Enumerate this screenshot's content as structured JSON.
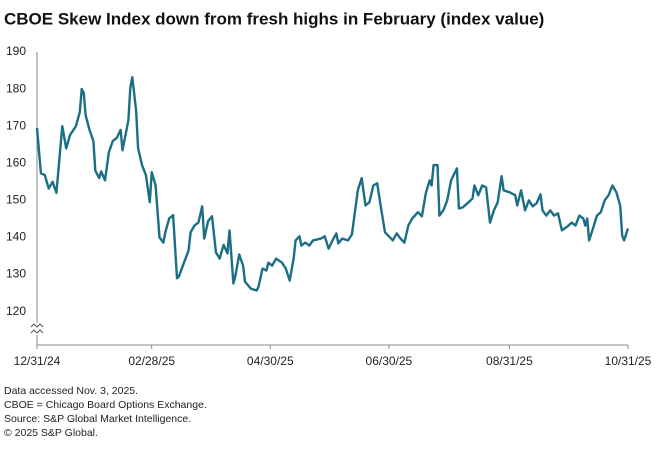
{
  "chart_data": {
    "type": "line",
    "title": "CBOE Skew Index down from fresh highs in February (index value)",
    "notes": [
      "Data accessed Nov. 3, 2025.",
      "CBOE = Chicago Board Options Exchange.",
      "Source: S&P Global Market Intelligence.",
      "© 2025 S&P Global."
    ],
    "xlim": [
      "2024-12-31",
      "2025-10-31"
    ],
    "xticks": [
      {
        "value": "2024-12-31",
        "label": "12/31/24"
      },
      {
        "value": "2025-02-28",
        "label": "02/28/25"
      },
      {
        "value": "2025-04-30",
        "label": "04/30/25"
      },
      {
        "value": "2025-06-30",
        "label": "06/30/25"
      },
      {
        "value": "2025-08-31",
        "label": "08/31/25"
      },
      {
        "value": "2025-10-31",
        "label": "10/31/25"
      }
    ],
    "ylim": [
      111,
      190
    ],
    "yticks": [
      120,
      130,
      140,
      150,
      160,
      170,
      180,
      190
    ],
    "grid": false,
    "x": [
      "2024-12-31",
      "2025-01-02",
      "2025-01-04",
      "2025-01-06",
      "2025-01-08",
      "2025-01-10",
      "2025-01-13",
      "2025-01-15",
      "2025-01-17",
      "2025-01-20",
      "2025-01-22",
      "2025-01-23",
      "2025-01-24",
      "2025-01-25",
      "2025-01-27",
      "2025-01-29",
      "2025-01-30",
      "2025-02-01",
      "2025-02-02",
      "2025-02-04",
      "2025-02-06",
      "2025-02-08",
      "2025-02-10",
      "2025-02-12",
      "2025-02-13",
      "2025-02-16",
      "2025-02-17",
      "2025-02-18",
      "2025-02-20",
      "2025-02-21",
      "2025-02-23",
      "2025-02-25",
      "2025-02-27",
      "2025-02-28",
      "2025-03-02",
      "2025-03-04",
      "2025-03-06",
      "2025-03-07",
      "2025-03-09",
      "2025-03-11",
      "2025-03-13",
      "2025-03-14",
      "2025-03-17",
      "2025-03-19",
      "2025-03-20",
      "2025-03-22",
      "2025-03-24",
      "2025-03-26",
      "2025-03-27",
      "2025-03-29",
      "2025-03-31",
      "2025-04-02",
      "2025-04-04",
      "2025-04-06",
      "2025-04-08",
      "2025-04-09",
      "2025-04-11",
      "2025-04-12",
      "2025-04-14",
      "2025-04-16",
      "2025-04-17",
      "2025-04-20",
      "2025-04-23",
      "2025-04-24",
      "2025-04-26",
      "2025-04-28",
      "2025-04-29",
      "2025-05-01",
      "2025-05-03",
      "2025-05-06",
      "2025-05-08",
      "2025-05-10",
      "2025-05-12",
      "2025-05-13",
      "2025-05-15",
      "2025-05-16",
      "2025-05-18",
      "2025-05-20",
      "2025-05-22",
      "2025-05-26",
      "2025-05-28",
      "2025-05-30",
      "2025-06-01",
      "2025-06-03",
      "2025-06-04",
      "2025-06-06",
      "2025-06-09",
      "2025-06-11",
      "2025-06-13",
      "2025-06-14",
      "2025-06-16",
      "2025-06-18",
      "2025-06-20",
      "2025-06-22",
      "2025-06-24",
      "2025-06-26",
      "2025-06-28",
      "2025-06-30",
      "2025-07-02",
      "2025-07-04",
      "2025-07-06",
      "2025-07-08",
      "2025-07-10",
      "2025-07-12",
      "2025-07-15",
      "2025-07-17",
      "2025-07-19",
      "2025-07-21",
      "2025-07-22",
      "2025-07-23",
      "2025-07-25",
      "2025-07-26",
      "2025-07-28",
      "2025-07-30",
      "2025-08-01",
      "2025-08-04",
      "2025-08-05",
      "2025-08-07",
      "2025-08-10",
      "2025-08-12",
      "2025-08-13",
      "2025-08-15",
      "2025-08-17",
      "2025-08-19",
      "2025-08-21",
      "2025-08-23",
      "2025-08-25",
      "2025-08-27",
      "2025-08-28",
      "2025-08-31",
      "2025-09-03",
      "2025-09-04",
      "2025-09-06",
      "2025-09-08",
      "2025-09-10",
      "2025-09-12",
      "2025-09-14",
      "2025-09-16",
      "2025-09-17",
      "2025-09-19",
      "2025-09-21",
      "2025-09-23",
      "2025-09-25",
      "2025-09-27",
      "2025-09-30",
      "2025-10-02",
      "2025-10-04",
      "2025-10-06",
      "2025-10-08",
      "2025-10-09",
      "2025-10-10",
      "2025-10-11",
      "2025-10-13",
      "2025-10-15",
      "2025-10-17",
      "2025-10-19",
      "2025-10-21",
      "2025-10-23",
      "2025-10-25",
      "2025-10-27",
      "2025-10-28",
      "2025-10-29",
      "2025-10-31"
    ],
    "series": [
      {
        "name": "CBOE Skew Index",
        "color": "#1b6f85",
        "values": [
          169.5,
          157.3,
          156.8,
          153.2,
          155,
          152,
          170,
          164,
          167.6,
          170,
          173.8,
          180,
          179,
          173,
          169,
          166,
          158,
          156,
          157.8,
          155.4,
          163,
          166,
          166.8,
          169,
          163.5,
          171.6,
          180.3,
          183.2,
          174.3,
          164,
          159.5,
          156.8,
          149.5,
          157.6,
          154,
          140,
          138.6,
          141.4,
          145.1,
          146,
          129,
          129.5,
          133.8,
          136.5,
          141.4,
          143.2,
          144,
          148.4,
          139.7,
          144.4,
          145.7,
          136,
          134.3,
          138,
          135.7,
          141.9,
          127.6,
          129.5,
          135.4,
          132.4,
          128.1,
          126.2,
          125.7,
          126.8,
          131.6,
          131.1,
          133.2,
          132.4,
          134.3,
          133.2,
          131.6,
          128.4,
          134.3,
          139.2,
          140.3,
          137.8,
          138.6,
          137.8,
          139.2,
          139.7,
          140.3,
          137,
          139.2,
          141.1,
          138.4,
          139.7,
          139.2,
          140.8,
          148.6,
          152.7,
          156,
          148.6,
          149.5,
          154,
          154.6,
          147.8,
          141.4,
          140.3,
          139.2,
          141.1,
          139.7,
          138.6,
          143.2,
          145.1,
          146.8,
          145.7,
          151.9,
          155.4,
          154,
          159.5,
          159.5,
          145.9,
          147.3,
          150,
          155.4,
          158.6,
          147.8,
          148.1,
          149.5,
          150.5,
          154,
          151.4,
          154,
          153.5,
          144,
          147.3,
          149.5,
          156.5,
          152.7,
          152.2,
          151.4,
          148.6,
          152.7,
          147.3,
          150,
          148.4,
          149.2,
          151.6,
          147.3,
          145.9,
          147.3,
          145.9,
          146.5,
          141.9,
          143,
          144,
          143.2,
          145.9,
          145.1,
          143.2,
          145.1,
          139.2,
          142.4,
          145.9,
          146.8,
          150,
          151.4,
          154,
          152.2,
          148.6,
          140.5,
          139.2,
          142.4
        ]
      }
    ]
  }
}
